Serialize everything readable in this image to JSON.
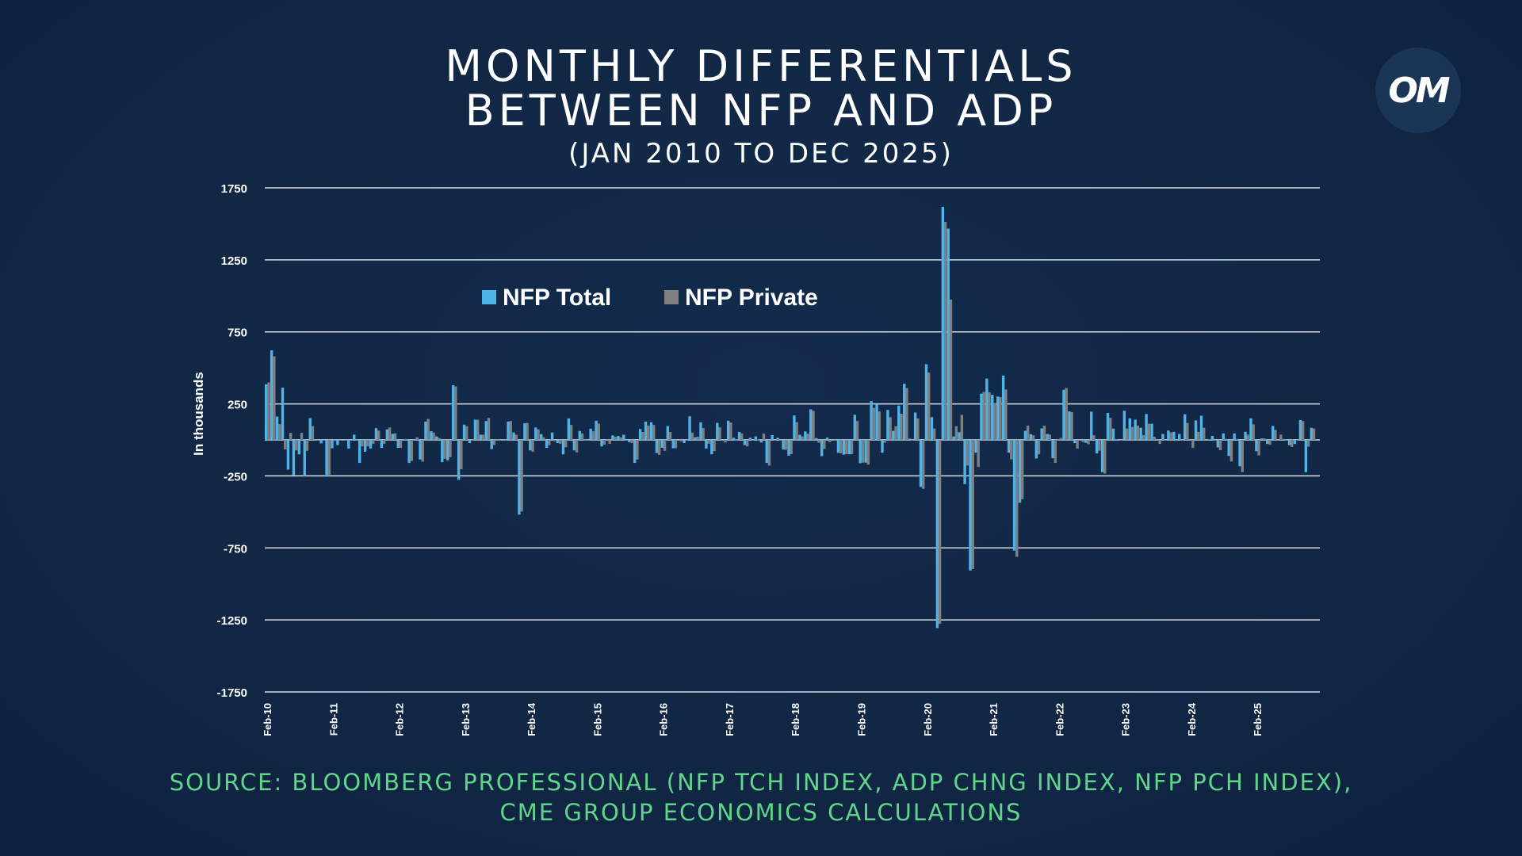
{
  "title": {
    "line1": "MONTHLY DIFFERENTIALS",
    "line2": "BETWEEN NFP AND ADP",
    "subtitle": "(JAN 2010 TO DEC 2025)"
  },
  "logo": {
    "text": "OM"
  },
  "source": {
    "line1": "SOURCE: BLOOMBERG PROFESSIONAL (NFP TCH INDEX, ADP CHNG INDEX, NFP PCH INDEX),",
    "line2": "CME GROUP ECONOMICS CALCULATIONS"
  },
  "colors": {
    "nfp_total": "#4fb3e8",
    "nfp_private": "#808080",
    "grid": "#d6dae2",
    "source_text": "#5fd68a"
  },
  "chart_data": {
    "type": "bar",
    "title": "MONTHLY DIFFERENTIALS BETWEEN NFP AND ADP",
    "subtitle": "(JAN 2010 TO DEC 2025)",
    "xlabel": "",
    "ylabel": "In thousands",
    "ylim": [
      -1750,
      1750
    ],
    "yticks": [
      1750,
      1250,
      750,
      250,
      -250,
      -750,
      -1250,
      -1750
    ],
    "grid": true,
    "legend_placement": "top-left",
    "x_start": "Feb-10",
    "x_end": "Dec-25",
    "xtick_labels": [
      "Feb-10",
      "Feb-11",
      "Feb-12",
      "Feb-13",
      "Feb-14",
      "Feb-15",
      "Feb-16",
      "Feb-17",
      "Feb-18",
      "Feb-19",
      "Feb-20",
      "Feb-21",
      "Feb-22",
      "Feb-23",
      "Feb-24",
      "Feb-25"
    ],
    "series": [
      {
        "name": "NFP Total",
        "color": "#4fb3e8",
        "values": [
          386,
          622,
          162,
          362,
          -206,
          -246,
          -100,
          -251,
          151,
          5,
          -24,
          -255,
          -58,
          -36,
          -5,
          -60,
          36,
          -160,
          -82,
          -60,
          82,
          -55,
          73,
          42,
          -55,
          5,
          -160,
          0,
          -136,
          127,
          60,
          24,
          -155,
          -142,
          379,
          -277,
          106,
          -22,
          140,
          36,
          131,
          -64,
          3,
          0,
          127,
          51,
          -519,
          115,
          -73,
          86,
          40,
          -55,
          51,
          -22,
          -100,
          149,
          -73,
          62,
          3,
          78,
          133,
          -45,
          5,
          31,
          27,
          36,
          -15,
          -160,
          76,
          127,
          122,
          -91,
          -55,
          96,
          -58,
          -5,
          -22,
          164,
          18,
          122,
          -60,
          -100,
          118,
          -5,
          133,
          15,
          55,
          -36,
          15,
          24,
          -18,
          -160,
          33,
          15,
          -67,
          -109,
          170,
          36,
          59,
          212,
          12,
          -113,
          16,
          0,
          -89,
          -103,
          -100,
          174,
          -162,
          -158,
          269,
          248,
          -89,
          208,
          63,
          238,
          390,
          8,
          190,
          -327,
          525,
          158,
          -1307,
          1618,
          1467,
          24,
          53,
          -307,
          -907,
          -89,
          321,
          426,
          313,
          301,
          447,
          -89,
          -768,
          -436,
          63,
          40,
          -129,
          80,
          41,
          -127,
          3,
          348,
          198,
          -22,
          -5,
          -20,
          196,
          -94,
          -224,
          187,
          79,
          0,
          202,
          150,
          140,
          84,
          180,
          112,
          5,
          41,
          65,
          56,
          41,
          178,
          -5,
          135,
          168,
          0,
          28,
          -52,
          45,
          -112,
          45,
          -183,
          56,
          150,
          -79,
          10,
          -28,
          97,
          -5,
          5,
          -37,
          -28,
          138,
          -224,
          84
        ]
      },
      {
        "name": "NFP Private",
        "color": "#808080",
        "values": [
          399,
          580,
          109,
          -66,
          49,
          -73,
          49,
          -76,
          96,
          0,
          -2,
          -242,
          -8,
          -5,
          -3,
          0,
          0,
          -45,
          -45,
          -27,
          64,
          -27,
          86,
          45,
          -55,
          5,
          -146,
          18,
          -151,
          146,
          51,
          13,
          -131,
          -120,
          371,
          -204,
          95,
          -5,
          140,
          36,
          153,
          -36,
          -5,
          0,
          131,
          36,
          -497,
          118,
          -82,
          73,
          18,
          -36,
          -8,
          -27,
          -51,
          104,
          -87,
          45,
          -5,
          60,
          113,
          -33,
          -27,
          22,
          18,
          0,
          -22,
          -136,
          55,
          100,
          104,
          -104,
          -76,
          55,
          -58,
          -10,
          0,
          51,
          22,
          82,
          -27,
          -78,
          87,
          -18,
          120,
          3,
          45,
          -45,
          0,
          3,
          44,
          -178,
          0,
          0,
          -69,
          -99,
          123,
          24,
          44,
          202,
          -20,
          -63,
          -16,
          0,
          -93,
          -99,
          -99,
          131,
          -158,
          -172,
          222,
          198,
          -20,
          158,
          95,
          182,
          360,
          0,
          149,
          -340,
          467,
          79,
          -1277,
          1513,
          974,
          95,
          174,
          -178,
          -897,
          -188,
          333,
          331,
          257,
          297,
          350,
          -135,
          -812,
          -412,
          99,
          32,
          -100,
          99,
          37,
          -159,
          14,
          361,
          193,
          -60,
          -15,
          -30,
          32,
          -75,
          -234,
          153,
          5,
          0,
          79,
          90,
          99,
          34,
          112,
          22,
          -28,
          -5,
          52,
          -7,
          0,
          118,
          -56,
          56,
          84,
          6,
          0,
          -71,
          7,
          -150,
          7,
          -224,
          37,
          108,
          -108,
          10,
          -34,
          69,
          37,
          0,
          -49,
          0,
          131,
          -47,
          79
        ]
      }
    ]
  }
}
